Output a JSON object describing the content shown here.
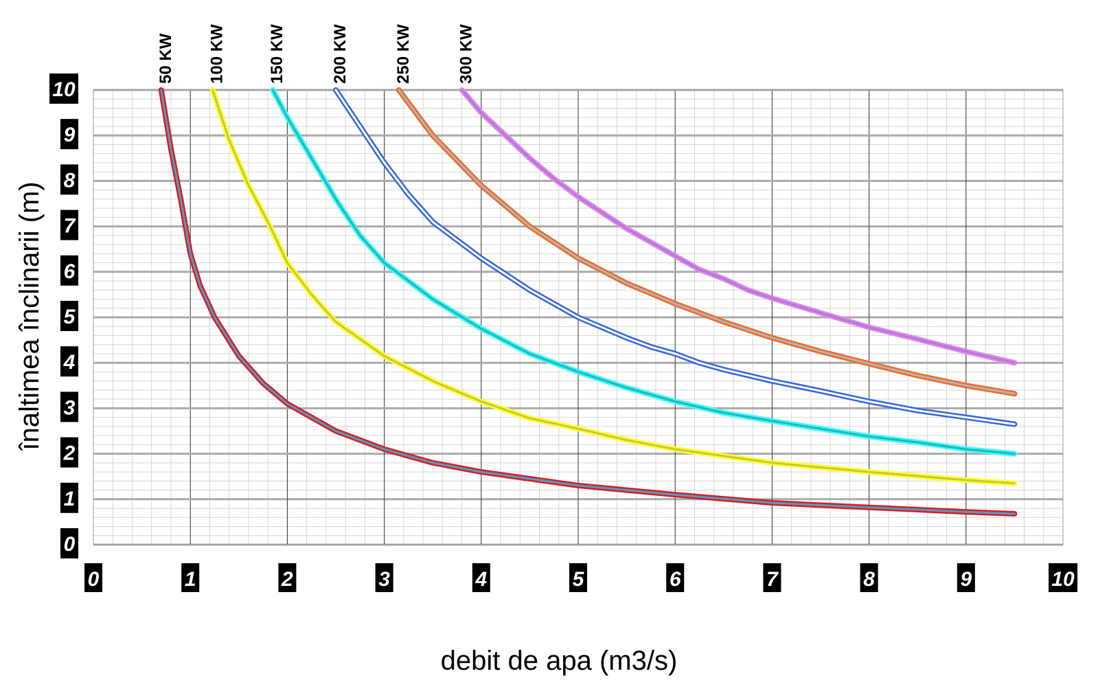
{
  "chart_data": {
    "type": "line",
    "title": "",
    "xlabel": "debit de apa (m3/s)",
    "ylabel": "înaltimea înclinarii (m)",
    "xlim": [
      0,
      10
    ],
    "ylim": [
      0,
      10
    ],
    "x_ticks": [
      "0",
      "1",
      "2",
      "3",
      "4",
      "5",
      "6",
      "7",
      "8",
      "9",
      "10"
    ],
    "y_ticks": [
      "0",
      "1",
      "2",
      "3",
      "4",
      "5",
      "6",
      "7",
      "8",
      "9",
      "10"
    ],
    "grid": true,
    "legend": "series labels at top of curves",
    "series": [
      {
        "name": "50 KW",
        "color": "#e8161b",
        "inner": "#3fa4c8",
        "x": [
          0.7,
          0.8,
          0.9,
          1.0,
          1.1,
          1.25,
          1.5,
          1.75,
          2.0,
          2.5,
          3.0,
          3.5,
          4.0,
          5.0,
          6.0,
          7.0,
          8.0,
          9.0,
          9.5
        ],
        "y": [
          10.0,
          8.7,
          7.6,
          6.4,
          5.7,
          5.0,
          4.15,
          3.55,
          3.1,
          2.5,
          2.1,
          1.8,
          1.6,
          1.3,
          1.1,
          0.92,
          0.82,
          0.72,
          0.68
        ]
      },
      {
        "name": "100 KW",
        "color": "#ffff33",
        "inner": "#c8c832",
        "x": [
          1.23,
          1.4,
          1.6,
          1.8,
          2.0,
          2.25,
          2.5,
          3.0,
          3.5,
          4.0,
          4.5,
          5.0,
          5.5,
          6.0,
          6.5,
          7.0,
          8.0,
          9.0,
          9.5
        ],
        "y": [
          10.0,
          8.9,
          7.9,
          7.1,
          6.2,
          5.5,
          4.9,
          4.15,
          3.6,
          3.15,
          2.78,
          2.55,
          2.3,
          2.1,
          1.95,
          1.8,
          1.6,
          1.42,
          1.35
        ]
      },
      {
        "name": "150 KW",
        "color": "#33ffff",
        "inner": "#28b4b4",
        "x": [
          1.85,
          2.0,
          2.25,
          2.5,
          2.75,
          3.0,
          3.5,
          4.0,
          4.5,
          5.0,
          5.5,
          6.0,
          6.5,
          7.0,
          7.5,
          8.0,
          8.5,
          9.0,
          9.5
        ],
        "y": [
          10.0,
          9.4,
          8.5,
          7.6,
          6.8,
          6.2,
          5.4,
          4.75,
          4.2,
          3.8,
          3.45,
          3.15,
          2.9,
          2.72,
          2.55,
          2.38,
          2.25,
          2.1,
          2.0
        ]
      },
      {
        "name": "200 KW",
        "color": "#3366dd",
        "inner": "#ffffff",
        "x": [
          2.5,
          2.75,
          3.0,
          3.25,
          3.5,
          4.0,
          4.5,
          5.0,
          5.5,
          5.75,
          6.0,
          6.25,
          6.5,
          7.0,
          7.5,
          8.0,
          8.5,
          9.0,
          9.5
        ],
        "y": [
          10.0,
          9.2,
          8.4,
          7.7,
          7.1,
          6.3,
          5.6,
          5.0,
          4.55,
          4.35,
          4.2,
          4.0,
          3.85,
          3.6,
          3.38,
          3.15,
          2.95,
          2.8,
          2.65
        ]
      },
      {
        "name": "250 KW",
        "color": "#f06a28",
        "inner": "#b4b4b4",
        "x": [
          3.15,
          3.5,
          4.0,
          4.5,
          5.0,
          5.5,
          6.0,
          6.5,
          7.0,
          7.5,
          8.0,
          8.5,
          9.0,
          9.5
        ],
        "y": [
          10.0,
          9.0,
          7.9,
          7.0,
          6.3,
          5.75,
          5.3,
          4.9,
          4.55,
          4.25,
          3.98,
          3.72,
          3.5,
          3.32
        ]
      },
      {
        "name": "300 KW",
        "color": "#dd88ee",
        "inner": "#b478d2",
        "x": [
          3.8,
          4.0,
          4.25,
          4.5,
          4.75,
          5.0,
          5.5,
          6.0,
          6.25,
          6.5,
          6.75,
          7.0,
          7.5,
          8.0,
          8.5,
          9.0,
          9.5
        ],
        "y": [
          10.0,
          9.5,
          9.0,
          8.5,
          8.05,
          7.65,
          6.95,
          6.35,
          6.05,
          5.85,
          5.6,
          5.42,
          5.1,
          4.78,
          4.52,
          4.25,
          4.0
        ]
      }
    ]
  }
}
